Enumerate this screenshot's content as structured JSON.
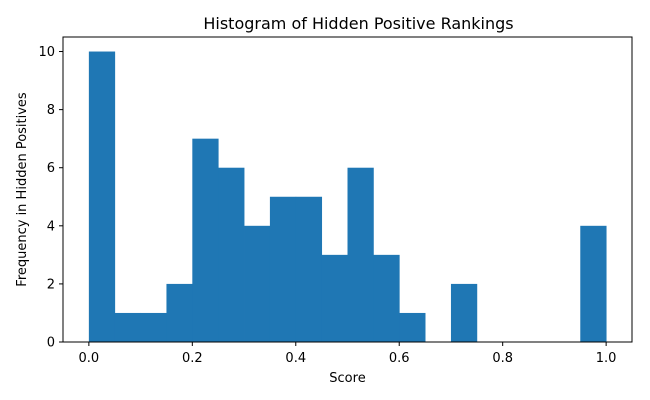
{
  "chart_data": {
    "type": "bar",
    "title": "Histogram of Hidden Positive Rankings",
    "xlabel": "Score",
    "ylabel": "Frequency in Hidden Positives",
    "bin_edges": [
      0.0,
      0.05,
      0.1,
      0.15,
      0.2,
      0.25,
      0.3,
      0.35,
      0.4,
      0.45,
      0.5,
      0.55,
      0.6,
      0.65,
      0.7,
      0.75,
      0.8,
      0.85,
      0.9,
      0.95,
      1.0
    ],
    "values": [
      10,
      1,
      1,
      2,
      7,
      6,
      4,
      5,
      5,
      3,
      6,
      3,
      1,
      0,
      2,
      0,
      0,
      0,
      0,
      4
    ],
    "xlim": [
      -0.05,
      1.05
    ],
    "ylim": [
      0,
      10.5
    ],
    "x_ticks": [
      "0.0",
      "0.2",
      "0.4",
      "0.6",
      "0.8",
      "1.0"
    ],
    "y_ticks": [
      "0",
      "2",
      "4",
      "6",
      "8",
      "10"
    ],
    "grid": false,
    "bar_color": "#1f77b4"
  }
}
